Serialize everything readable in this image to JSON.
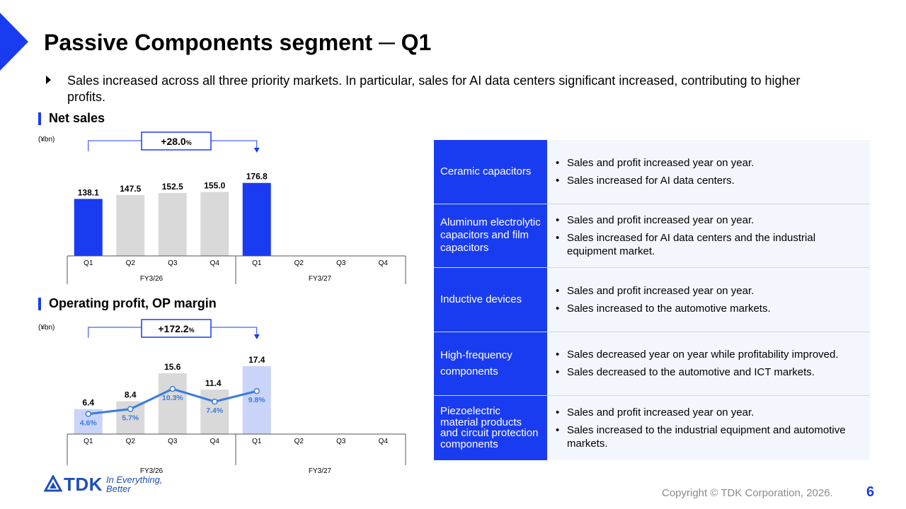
{
  "slide": {
    "title": "Passive Components segment ─ Q1",
    "lead": "Sales increased across all three priority markets. In particular, sales for AI data centers significant increased, contributing to higher profits.",
    "page_number": "6",
    "copyright": "Copyright © TDK Corporation, 2026."
  },
  "logo": {
    "wordmark": "TDK",
    "tagline_line1": "In Everything,",
    "tagline_line2": "Better"
  },
  "colors": {
    "accent": "#1a3cf0",
    "gray_bar": "#d9d9d9",
    "light_blue_bar": "#c9d4f8",
    "op_line": "#3a7be0"
  },
  "net_sales": {
    "heading": "Net sales",
    "unit": "(¥bn)",
    "growth_value": "+28.0",
    "growth_unit": "%"
  },
  "op_profit": {
    "heading": "Operating profit, OP margin",
    "unit": "(¥bn)",
    "growth_value": "+172.2",
    "growth_unit": "%"
  },
  "chart_data": [
    {
      "type": "bar",
      "title": "Net sales",
      "ylabel": "(¥bn)",
      "categories": [
        "Q1",
        "Q2",
        "Q3",
        "Q4",
        "Q1",
        "Q2",
        "Q3",
        "Q4"
      ],
      "groups": [
        {
          "label": "FY3/26",
          "categories": 4
        },
        {
          "label": "FY3/27",
          "categories": 4
        }
      ],
      "values": [
        138.1,
        147.5,
        152.5,
        155.0,
        176.8,
        null,
        null,
        null
      ],
      "labels": [
        "138.1",
        "147.5",
        "152.5",
        "155.0",
        "176.8",
        "",
        "",
        ""
      ],
      "highlight": [
        true,
        false,
        false,
        false,
        true,
        false,
        false,
        false
      ],
      "annotation": "+28.0%",
      "ylim": [
        0,
        200
      ],
      "grid": false
    },
    {
      "type": "bar",
      "title": "Operating profit, OP margin",
      "ylabel": "(¥bn)",
      "categories": [
        "Q1",
        "Q2",
        "Q3",
        "Q4",
        "Q1",
        "Q2",
        "Q3",
        "Q4"
      ],
      "groups": [
        {
          "label": "FY3/26",
          "categories": 4
        },
        {
          "label": "FY3/27",
          "categories": 4
        }
      ],
      "series": [
        {
          "values": [
            6.4,
            8.4,
            15.6,
            11.4,
            17.4,
            null,
            null,
            null
          ],
          "labels": [
            "6.4",
            "8.4",
            "15.6",
            "11.4",
            "17.4",
            "",
            "",
            ""
          ]
        },
        {
          "type": "line",
          "values": [
            4.6,
            5.7,
            10.3,
            7.4,
            9.8,
            null,
            null,
            null
          ],
          "labels": [
            "4.6%",
            "5.7%",
            "10.3%",
            "7.4%",
            "9.8%",
            "",
            "",
            ""
          ]
        }
      ],
      "highlight": [
        true,
        false,
        false,
        false,
        true,
        false,
        false,
        false
      ],
      "annotation": "+172.2%",
      "ylim": [
        0,
        20
      ],
      "grid": false
    }
  ],
  "table": {
    "rows": [
      {
        "category": "Ceramic capacitors",
        "points": [
          "Sales and profit increased year on year.",
          "Sales increased for AI data centers."
        ]
      },
      {
        "category": "Aluminum electrolytic capacitors and film capacitors",
        "points": [
          "Sales and profit increased year on year.",
          "Sales increased for AI data centers and the industrial equipment market."
        ]
      },
      {
        "category": "Inductive devices",
        "points": [
          "Sales and profit increased year on year.",
          "Sales increased to the automotive markets."
        ]
      },
      {
        "category": "High-frequency components",
        "points": [
          "Sales decreased year on year while profitability improved.",
          "Sales decreased to the automotive and ICT markets."
        ]
      },
      {
        "category": "Piezoelectric material products and circuit protection components",
        "points": [
          "Sales and profit increased year on year.",
          "Sales increased to the industrial equipment and automotive markets."
        ]
      }
    ]
  }
}
